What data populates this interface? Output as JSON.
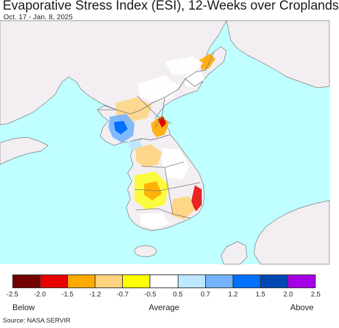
{
  "header": {
    "title": "Evaporative Stress Index (ESI), 12-Weeks over Croplands",
    "date_range": "Oct. 17 - Jan. 8, 2025"
  },
  "map": {
    "ocean_color": "#bfffff",
    "land_color": "#f2eef2",
    "border_color": "#777777"
  },
  "legend": {
    "swatches": [
      "#730000",
      "#e60000",
      "#ffaa00",
      "#ffd37f",
      "#ffff00",
      "#ffffff",
      "#bee8ff",
      "#73b2ff",
      "#0070ff",
      "#0047b3",
      "#a400e6"
    ],
    "ticks": [
      "-2.5",
      "-2.0",
      "-1.5",
      "-1.2",
      "-0.7",
      "-0.5",
      "0.5",
      "0.7",
      "1.2",
      "1.5",
      "2.0",
      "2.5"
    ],
    "below_label": "Below",
    "average_label": "Average",
    "above_label": "Above"
  },
  "footer": {
    "source": "Source: NASA SERVIR"
  }
}
